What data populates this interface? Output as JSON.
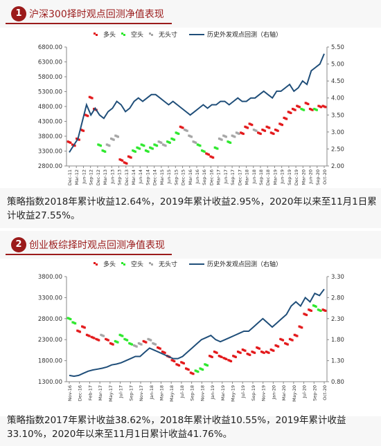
{
  "sections": [
    {
      "number": "1",
      "title": "沪深300择时观点回测净值表现",
      "caption": "策略指数2018年累计收益12.64%，2019年累计收益2.95%，2020年以来至11月1日累计收益27.55%。"
    },
    {
      "number": "2",
      "title": "创业板综择时观点回测净值表现",
      "caption": "策略指数2017年累计收益38.62%，2018年累计收益10.55%，2019年累计收益33.10%，2020年以来至11月1日累计收益41.76%。"
    }
  ],
  "colors": {
    "accent": "#9b1b1b",
    "bull": "#e31a1c",
    "bear": "#2ee82e",
    "neutral": "#a6a6a6",
    "nav": "#1f4e79"
  },
  "chart_data": [
    {
      "type": "line",
      "legend": [
        "多头",
        "空头",
        "无头寸",
        "历史外发观点回测（右轴）"
      ],
      "legend_placement": "top",
      "ylim": [
        2800,
        6800
      ],
      "yticks": [
        2800,
        3300,
        3800,
        4300,
        4800,
        5300,
        5800,
        6300,
        6800
      ],
      "ytick_labels": [
        "2800.00",
        "3300.00",
        "3800.00",
        "4300.00",
        "4800.00",
        "5300.00",
        "5800.00",
        "6300.00",
        "6800.00"
      ],
      "y2lim": [
        2.0,
        5.5
      ],
      "y2ticks": [
        2.0,
        2.5,
        3.0,
        3.5,
        4.0,
        4.5,
        5.0,
        5.5
      ],
      "y2tick_labels": [
        "2.00",
        "2.50",
        "3.00",
        "3.50",
        "4.00",
        "4.50",
        "5.00",
        "5.50"
      ],
      "x_count": 60,
      "index_series": [
        3600,
        3500,
        3700,
        4000,
        4500,
        5100,
        4700,
        3500,
        3300,
        3500,
        3700,
        3800,
        3000,
        2900,
        3100,
        3300,
        3400,
        3500,
        3300,
        3400,
        3500,
        3600,
        3500,
        3600,
        3700,
        3900,
        4100,
        4000,
        3800,
        3600,
        3500,
        3300,
        3200,
        3100,
        3400,
        3700,
        3800,
        3600,
        3800,
        3900,
        3900,
        4100,
        4200,
        4000,
        3900,
        4000,
        4100,
        3900,
        4000,
        4200,
        4400,
        4600,
        4700,
        4800,
        4700,
        4900,
        4700,
        4700,
        4800,
        4800
      ],
      "index_state": [
        "b",
        "b",
        "b",
        "b",
        "b",
        "b",
        "b",
        "s",
        "s",
        "n",
        "n",
        "n",
        "b",
        "b",
        "b",
        "s",
        "s",
        "s",
        "s",
        "s",
        "s",
        "n",
        "n",
        "s",
        "s",
        "s",
        "b",
        "n",
        "n",
        "n",
        "s",
        "s",
        "b",
        "b",
        "s",
        "n",
        "n",
        "s",
        "n",
        "n",
        "b",
        "b",
        "b",
        "n",
        "b",
        "b",
        "b",
        "b",
        "b",
        "b",
        "b",
        "b",
        "b",
        "b",
        "s",
        "b",
        "b",
        "s",
        "b",
        "b"
      ],
      "nav_series": [
        2.4,
        2.6,
        2.8,
        3.3,
        3.8,
        3.5,
        3.7,
        3.5,
        3.4,
        3.6,
        3.7,
        3.9,
        3.8,
        3.6,
        3.7,
        3.9,
        4.0,
        3.9,
        4.0,
        4.1,
        4.1,
        4.0,
        3.9,
        3.8,
        3.9,
        3.8,
        3.7,
        3.6,
        3.5,
        3.6,
        3.7,
        3.8,
        3.7,
        3.8,
        3.8,
        3.9,
        3.9,
        3.8,
        3.9,
        4.0,
        3.9,
        3.9,
        4.0,
        4.0,
        4.1,
        4.2,
        4.1,
        4.0,
        4.2,
        4.2,
        4.3,
        4.4,
        4.2,
        4.3,
        4.5,
        4.4,
        4.8,
        4.9,
        5.0,
        5.3
      ],
      "x_tick_labels": [
        "Dec-11",
        "Mar-12",
        "Jun-12",
        "Sep-12",
        "Dec-12",
        "Mar-13",
        "Jun-13",
        "Sep-13",
        "Dec-13",
        "Mar-14",
        "Jun-14",
        "Sep-14",
        "Dec-14",
        "Mar-15",
        "Jun-15",
        "Sep-15",
        "Dec-15",
        "Mar-16",
        "Jun-16",
        "Sep-16",
        "Dec-16",
        "Mar-17",
        "Jun-17",
        "Sep-17",
        "Dec-17",
        "Mar-18",
        "Jun-18",
        "Sep-18",
        "Dec-18",
        "Mar-19",
        "Jun-19",
        "Sep-19",
        "Dec-19",
        "Mar-20",
        "Jun-20",
        "Sep-20",
        "Oct-20"
      ]
    },
    {
      "type": "line",
      "legend": [
        "多头",
        "空头",
        "无头寸",
        "历史外发观点回测（右轴）"
      ],
      "legend_placement": "top",
      "ylim": [
        1300,
        3800
      ],
      "yticks": [
        1300,
        1800,
        2300,
        2800,
        3300,
        3800
      ],
      "ytick_labels": [
        "1300.00",
        "1800.00",
        "2300.00",
        "2800.00",
        "3300.00",
        "3800.00"
      ],
      "y2lim": [
        0.8,
        3.3
      ],
      "y2ticks": [
        0.8,
        1.3,
        1.8,
        2.3,
        2.8,
        3.3
      ],
      "y2tick_labels": [
        "0.80",
        "1.30",
        "1.80",
        "2.30",
        "2.80",
        "3.30"
      ],
      "x_count": 55,
      "index_series": [
        2800,
        2700,
        2500,
        2600,
        2400,
        2350,
        2300,
        2400,
        2300,
        2200,
        2250,
        2400,
        2300,
        2200,
        2150,
        2200,
        2250,
        2300,
        2200,
        2100,
        2000,
        1900,
        1800,
        1700,
        1750,
        1600,
        1500,
        1550,
        1600,
        1700,
        1900,
        2000,
        1900,
        1850,
        1800,
        1900,
        2000,
        2050,
        1950,
        2000,
        2100,
        2000,
        2000,
        2050,
        2150,
        2300,
        2200,
        2300,
        2400,
        2600,
        2900,
        3000,
        3100,
        3000,
        3000
      ],
      "index_state": [
        "s",
        "s",
        "b",
        "b",
        "b",
        "b",
        "b",
        "n",
        "b",
        "b",
        "s",
        "s",
        "s",
        "s",
        "n",
        "n",
        "b",
        "n",
        "n",
        "b",
        "b",
        "b",
        "b",
        "b",
        "b",
        "b",
        "b",
        "s",
        "s",
        "s",
        "b",
        "b",
        "b",
        "b",
        "b",
        "b",
        "b",
        "b",
        "b",
        "b",
        "b",
        "b",
        "b",
        "b",
        "b",
        "b",
        "b",
        "b",
        "b",
        "b",
        "b",
        "b",
        "s",
        "s",
        "b"
      ],
      "nav_series": [
        0.95,
        0.93,
        0.95,
        1.0,
        1.05,
        1.08,
        1.1,
        1.12,
        1.15,
        1.2,
        1.22,
        1.25,
        1.3,
        1.35,
        1.4,
        1.4,
        1.5,
        1.6,
        1.55,
        1.5,
        1.45,
        1.4,
        1.35,
        1.35,
        1.4,
        1.5,
        1.6,
        1.7,
        1.8,
        1.85,
        1.9,
        1.8,
        1.75,
        1.8,
        1.85,
        1.9,
        1.95,
        2.0,
        2.0,
        2.1,
        2.2,
        2.3,
        2.2,
        2.1,
        2.2,
        2.3,
        2.4,
        2.6,
        2.7,
        2.6,
        2.8,
        2.7,
        2.9,
        2.85,
        3.0
      ],
      "x_tick_labels": [
        "Nov-16",
        "Dec-16",
        "Feb-17",
        "Mar-17",
        "May-17",
        "Jul-17",
        "Sep-17",
        "Nov-17",
        "Jan-18",
        "Mar-18",
        "May-18",
        "Jul-18",
        "Sep-18",
        "Nov-18",
        "Jan-19",
        "Mar-19",
        "May-19",
        "Jul-19",
        "Sep-19",
        "Nov-19",
        "Jan-20",
        "Mar-20",
        "May-20",
        "Jul-20",
        "Sep-20",
        "Oct-20"
      ]
    }
  ]
}
